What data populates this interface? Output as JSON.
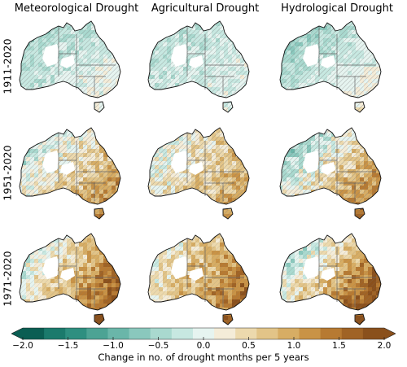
{
  "columns": [
    "Meteorological Drought",
    "Agricultural Drought",
    "Hydrological Drought"
  ],
  "rows": [
    "1911-2020",
    "1951-2020",
    "1971-2020"
  ],
  "colorbar": {
    "label": "Change in no. of drought months per 5 years",
    "ticks": [
      "−2.0",
      "−1.5",
      "−1.0",
      "−0.5",
      "0.0",
      "0.5",
      "1.0",
      "1.5",
      "2.0"
    ],
    "range": [
      -2.0,
      2.0
    ],
    "colors": [
      "#0b5e53",
      "#1b7a6c",
      "#2e8f80",
      "#4ca394",
      "#6ab6a9",
      "#8ac8bd",
      "#a9d9cf",
      "#c7e8e1",
      "#e6f4f0",
      "#f4ecd8",
      "#ecd9ad",
      "#e2c488",
      "#d7ad64",
      "#c99346",
      "#b77a32",
      "#a06325",
      "#8a501c"
    ]
  },
  "colors": {
    "land_dry": "#d7ad64",
    "land_wet": "#4ca394",
    "hatch": "#7a7a7a"
  }
}
